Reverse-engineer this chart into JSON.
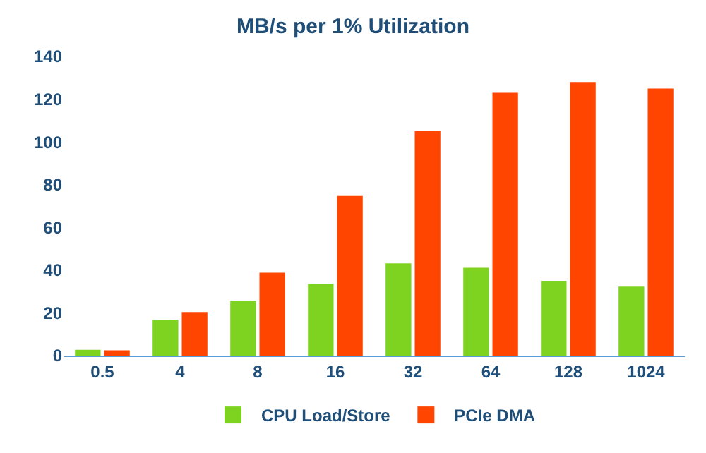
{
  "chart_data": {
    "type": "bar",
    "title": "MB/s per 1% Utilization",
    "categories": [
      "0.5",
      "4",
      "8",
      "16",
      "32",
      "64",
      "128",
      "1024"
    ],
    "series": [
      {
        "name": "CPU Load/Store",
        "color": "#7ed321",
        "values": [
          2.7,
          16.8,
          25.7,
          33.7,
          43.2,
          41.1,
          35,
          32.3
        ]
      },
      {
        "name": "PCIe DMA",
        "color": "#ff4500",
        "values": [
          2.5,
          20.4,
          38.8,
          74.7,
          105,
          123,
          128,
          125
        ]
      }
    ],
    "ylim": [
      0,
      140
    ],
    "yticks": [
      0,
      20,
      40,
      60,
      80,
      100,
      120,
      140
    ],
    "grid": false,
    "legend": "bottom"
  }
}
